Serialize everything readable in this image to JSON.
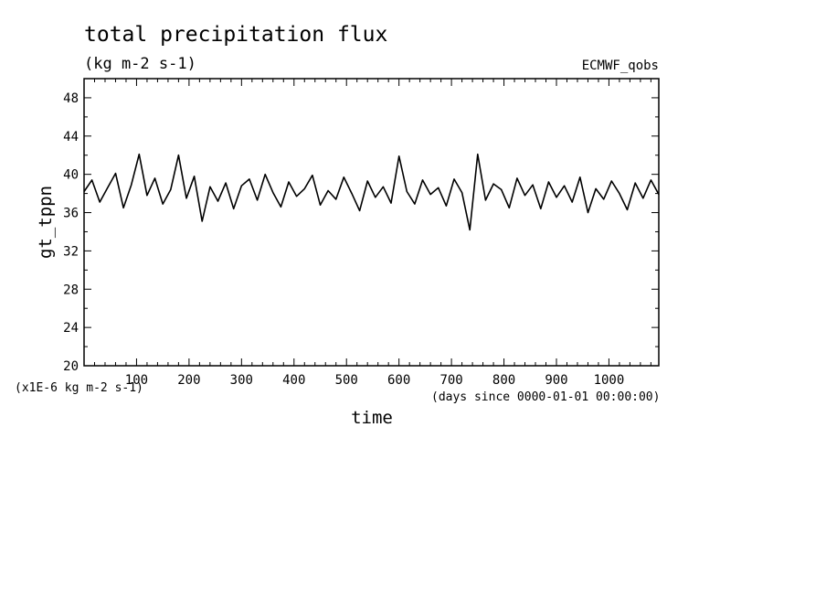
{
  "chart_data": {
    "type": "line",
    "title": "total precipitation flux",
    "units_label": "(kg m-2 s-1)",
    "source_label": "ECMWF_qobs",
    "xlabel": "time",
    "x_units_label": "(days since 0000-01-01 00:00:00)",
    "ylabel": "gt_tppn",
    "y_scale_label": "(x1E-6 kg m-2 s-1)",
    "xlim": [
      0,
      1095
    ],
    "ylim": [
      20,
      50
    ],
    "x_ticks": [
      100,
      200,
      300,
      400,
      500,
      600,
      700,
      800,
      900,
      1000
    ],
    "y_ticks": [
      20,
      24,
      28,
      32,
      36,
      40,
      44,
      48
    ],
    "grid": false,
    "series": [
      {
        "x": [
          0,
          15,
          30,
          45,
          60,
          75,
          90,
          105,
          120,
          135,
          150,
          165,
          180,
          195,
          210,
          225,
          240,
          255,
          270,
          285,
          300,
          315,
          330,
          345,
          360,
          375,
          390,
          405,
          420,
          435,
          450,
          465,
          480,
          495,
          510,
          525,
          540,
          555,
          570,
          585,
          600,
          615,
          630,
          645,
          660,
          675,
          690,
          705,
          720,
          735,
          750,
          765,
          780,
          795,
          810,
          825,
          840,
          855,
          870,
          885,
          900,
          915,
          930,
          945,
          960,
          975,
          990,
          1005,
          1020,
          1035,
          1050,
          1065,
          1080,
          1095
        ],
        "values": [
          38.2,
          39.4,
          37.1,
          38.6,
          40.1,
          36.5,
          38.9,
          42.1,
          37.8,
          39.6,
          36.9,
          38.4,
          42.0,
          37.5,
          39.8,
          35.1,
          38.7,
          37.2,
          39.1,
          36.4,
          38.8,
          39.5,
          37.3,
          40.0,
          38.1,
          36.6,
          39.2,
          37.7,
          38.5,
          39.9,
          36.8,
          38.3,
          37.4,
          39.7,
          38.0,
          36.2,
          39.3,
          37.6,
          38.7,
          37.0,
          41.9,
          38.2,
          36.9,
          39.4,
          37.9,
          38.6,
          36.7,
          39.5,
          38.1,
          34.2,
          42.1,
          37.3,
          39.0,
          38.4,
          36.5,
          39.6,
          37.8,
          38.9,
          36.4,
          39.2,
          37.6,
          38.8,
          37.1,
          39.7,
          36.0,
          38.5,
          37.4,
          39.3,
          38.0,
          36.3,
          39.1,
          37.5,
          39.4,
          37.9
        ]
      }
    ]
  }
}
